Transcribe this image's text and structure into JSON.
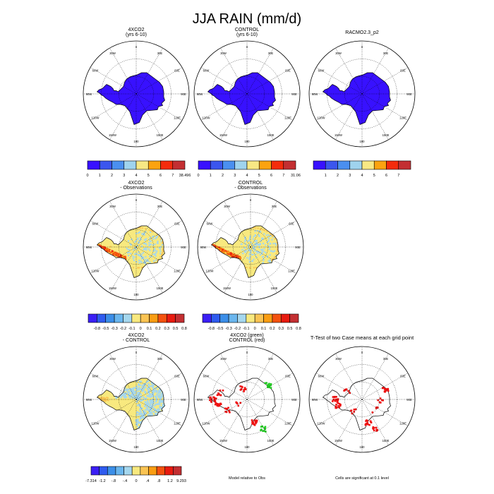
{
  "title": "JJA RAIN (mm/d)",
  "colors": {
    "rain": [
      "#3811ff",
      "#3b56ee",
      "#4a8ff0",
      "#9fd3ee",
      "#f8e884",
      "#fca310",
      "#f42c0c",
      "#c32f32"
    ],
    "diff": [
      "#3b1ff5",
      "#2f5bef",
      "#3b8ee8",
      "#6ab6ee",
      "#a5d7ee",
      "#f8e97f",
      "#fac453",
      "#f99d13",
      "#f4520f",
      "#e81b10",
      "#c32f32"
    ],
    "ttest_red": "#ee1111",
    "ttest_green": "#22cc22",
    "land_line": "#000000",
    "grid_line": "#000000"
  },
  "chart_data": [
    {
      "type": "heatmap",
      "id": "p1",
      "title": "4XCO2",
      "subtitle": "(yrs 6-10)",
      "map": "south-polar-stereographic",
      "fill": "uniform-low-rain",
      "lon_labels": [
        "0",
        "30E",
        "60E",
        "90E",
        "120E",
        "150E",
        "180",
        "150W",
        "120W",
        "90W",
        "60W",
        "30W"
      ],
      "colorbar": {
        "colors_key": "rain",
        "labels": [
          "0",
          "1",
          "2",
          "3",
          "4",
          "5",
          "6",
          "7",
          "38.496"
        ],
        "label_mode": "boundaries"
      }
    },
    {
      "type": "heatmap",
      "id": "p2",
      "title": "CONTROL",
      "subtitle": "(yrs 6-10)",
      "map": "south-polar-stereographic",
      "fill": "uniform-low-rain",
      "lon_labels": [
        "0",
        "30E",
        "60E",
        "90E",
        "120E",
        "150E",
        "180",
        "150W",
        "120W",
        "90W",
        "60W",
        "30W"
      ],
      "colorbar": {
        "colors_key": "rain",
        "labels": [
          "0",
          "1",
          "2",
          "3",
          "4",
          "5",
          "6",
          "7",
          "31.06"
        ],
        "label_mode": "boundaries"
      }
    },
    {
      "type": "heatmap",
      "id": "p3",
      "title": "RACMO2.3_p2",
      "subtitle": "",
      "map": "south-polar-stereographic",
      "fill": "uniform-low-rain",
      "lon_labels": [
        "0",
        "30E",
        "60E",
        "90E",
        "120E",
        "150E",
        "180",
        "150W",
        "120W",
        "90W",
        "60W",
        "30W"
      ],
      "colorbar": {
        "colors_key": "rain",
        "labels": [
          "1",
          "2",
          "3",
          "4",
          "5",
          "6",
          "7"
        ],
        "label_mode": "interior"
      }
    },
    {
      "type": "heatmap",
      "id": "p4",
      "title": "4XCO2",
      "subtitle": "- Observations",
      "map": "south-polar-stereographic",
      "fill": "model-minus-obs",
      "lon_labels": [
        "0",
        "30E",
        "60E",
        "90E",
        "120E",
        "150E",
        "180",
        "150W",
        "120W",
        "90W",
        "60W",
        "30W"
      ],
      "colorbar": {
        "colors_key": "diff",
        "labels": [
          "-0.8",
          "-0.5",
          "-0.3",
          "-0.2",
          "-0.1",
          "0",
          "0.1",
          "0.2",
          "0.3",
          "0.5",
          "0.8"
        ],
        "label_mode": "interior"
      }
    },
    {
      "type": "heatmap",
      "id": "p5",
      "title": "CONTROL",
      "subtitle": "- Observations",
      "map": "south-polar-stereographic",
      "fill": "model-minus-obs",
      "lon_labels": [
        "0",
        "30E",
        "60E",
        "90E",
        "120E",
        "150E",
        "180",
        "150W",
        "120W",
        "90W",
        "60W",
        "30W"
      ],
      "colorbar": {
        "colors_key": "diff",
        "labels": [
          "-0.8",
          "-0.5",
          "-0.3",
          "-0.2",
          "-0.1",
          "0",
          "0.1",
          "0.2",
          "0.3",
          "0.5",
          "0.8"
        ],
        "label_mode": "interior"
      }
    },
    {
      "type": "heatmap",
      "id": "p7",
      "title": "4XCO2",
      "subtitle": "- CONTROL",
      "map": "south-polar-stereographic",
      "fill": "model-minus-model",
      "lon_labels": [
        "0",
        "30E",
        "60E",
        "90E",
        "120E",
        "150E",
        "180",
        "150W",
        "120W",
        "90W",
        "60W",
        "30W"
      ],
      "colorbar": {
        "colors_key": "diff",
        "labels": [
          "-7.314",
          "-1.2",
          "-.8",
          "-.4",
          "0",
          ".4",
          ".8",
          "1.2",
          "9.293"
        ],
        "label_mode": "boundaries"
      }
    },
    {
      "type": "heatmap",
      "id": "p8",
      "title": "4XCO2 (green)",
      "subtitle": "CONTROL (red)",
      "map": "south-polar-stereographic",
      "fill": "significance-two-color",
      "lon_labels": [
        "0",
        "30E",
        "60E",
        "90E",
        "120E",
        "150E",
        "180",
        "150W",
        "120W",
        "90W",
        "60W",
        "30W"
      ],
      "footnote": "Model relative to Obs"
    },
    {
      "type": "heatmap",
      "id": "p9",
      "title": "T-Test of two Case means at each grid point",
      "subtitle": "",
      "map": "south-polar-stereographic",
      "fill": "significance-red",
      "lon_labels": [
        "0",
        "30E",
        "60E",
        "90E",
        "120E",
        "150E",
        "180",
        "150W",
        "120W",
        "90W",
        "60W",
        "30W"
      ],
      "footnote": "Cells are significant at 0.1 level"
    }
  ]
}
